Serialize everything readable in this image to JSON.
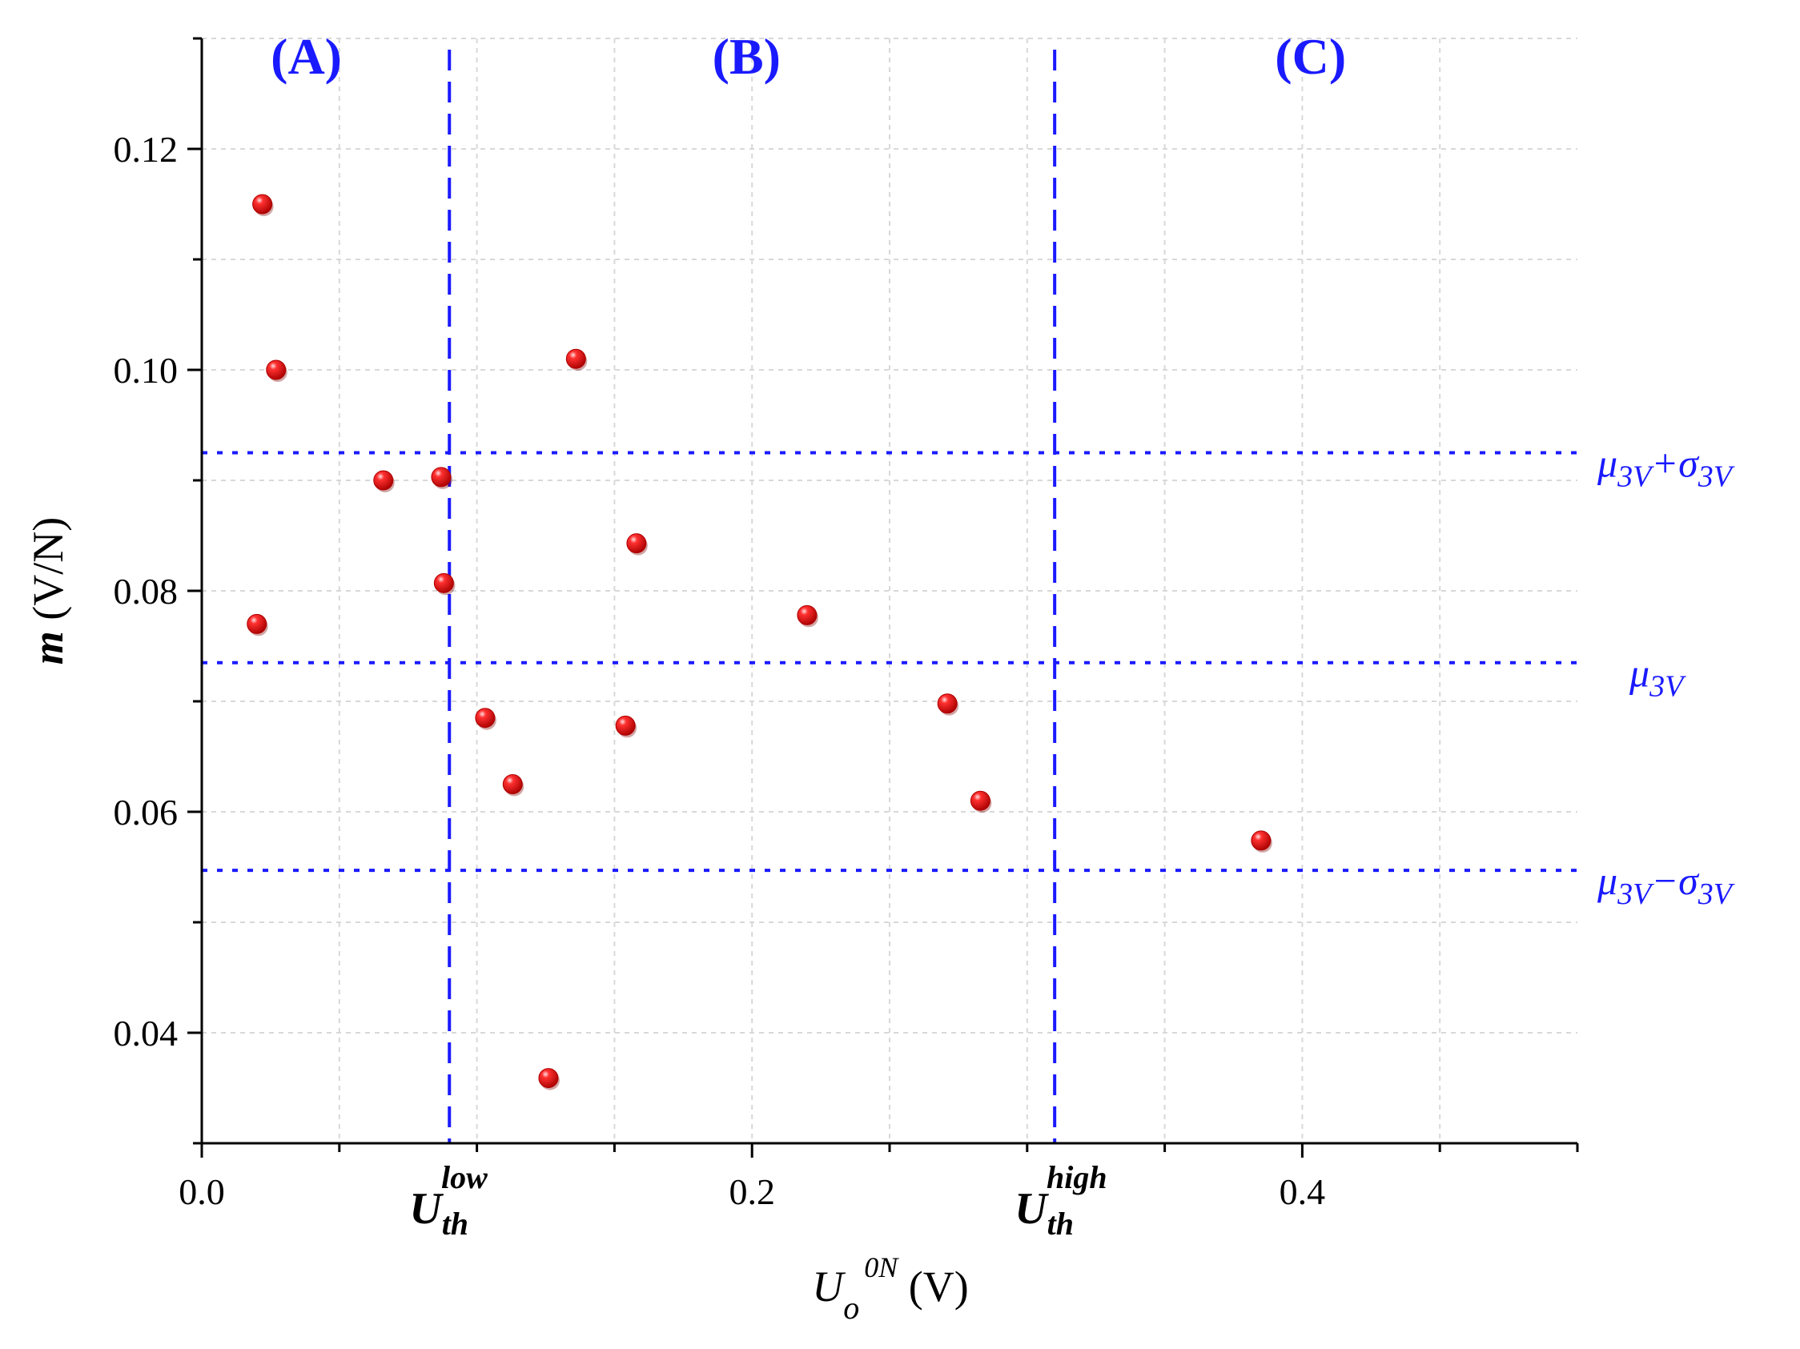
{
  "chart_data": {
    "type": "scatter",
    "title": "",
    "xlabel": {
      "main": "U",
      "sub": "o",
      "sup": "0N",
      "unit": "(V)"
    },
    "ylabel": {
      "main": "m",
      "unit": "(V/N)"
    },
    "xlim": [
      0.0,
      0.5
    ],
    "ylim": [
      0.03,
      0.13
    ],
    "x_ticks": [
      0.0,
      0.2,
      0.4
    ],
    "x_tick_labels": [
      "0.0",
      "0.2",
      "0.4"
    ],
    "y_ticks": [
      0.04,
      0.06,
      0.08,
      0.1,
      0.12
    ],
    "y_tick_labels": [
      "0.04",
      "0.06",
      "0.08",
      "0.10",
      "0.12"
    ],
    "grid": true,
    "marker_color": "#e60000",
    "reference_color": "#1a1aff",
    "series": [
      {
        "name": "samples",
        "points": [
          {
            "x": 0.022,
            "y": 0.115
          },
          {
            "x": 0.027,
            "y": 0.1
          },
          {
            "x": 0.02,
            "y": 0.077
          },
          {
            "x": 0.066,
            "y": 0.09
          },
          {
            "x": 0.087,
            "y": 0.0903
          },
          {
            "x": 0.088,
            "y": 0.0807
          },
          {
            "x": 0.103,
            "y": 0.0685
          },
          {
            "x": 0.113,
            "y": 0.0625
          },
          {
            "x": 0.126,
            "y": 0.0359
          },
          {
            "x": 0.136,
            "y": 0.101
          },
          {
            "x": 0.154,
            "y": 0.0678
          },
          {
            "x": 0.158,
            "y": 0.0843
          },
          {
            "x": 0.22,
            "y": 0.0778
          },
          {
            "x": 0.271,
            "y": 0.0698
          },
          {
            "x": 0.283,
            "y": 0.061
          },
          {
            "x": 0.385,
            "y": 0.0574
          }
        ]
      }
    ],
    "vertical_thresholds": [
      {
        "x": 0.09,
        "label_main": "U",
        "label_sub": "th",
        "label_sup": "low"
      },
      {
        "x": 0.31,
        "label_main": "U",
        "label_sub": "th",
        "label_sup": "high"
      }
    ],
    "horizontal_references": [
      {
        "y": 0.0925,
        "label_prefix": "μ",
        "label_sub1": "3V",
        "label_op": "+σ",
        "label_sub2": "3V"
      },
      {
        "y": 0.0735,
        "label_prefix": "μ",
        "label_sub1": "3V",
        "label_op": "",
        "label_sub2": ""
      },
      {
        "y": 0.0547,
        "label_prefix": "μ",
        "label_sub1": "3V",
        "label_op": "−σ",
        "label_sub2": "3V"
      }
    ],
    "regions": [
      {
        "label": "(A)",
        "x_center": 0.038
      },
      {
        "label": "(B)",
        "x_center": 0.198
      },
      {
        "label": "(C)",
        "x_center": 0.403
      }
    ]
  }
}
